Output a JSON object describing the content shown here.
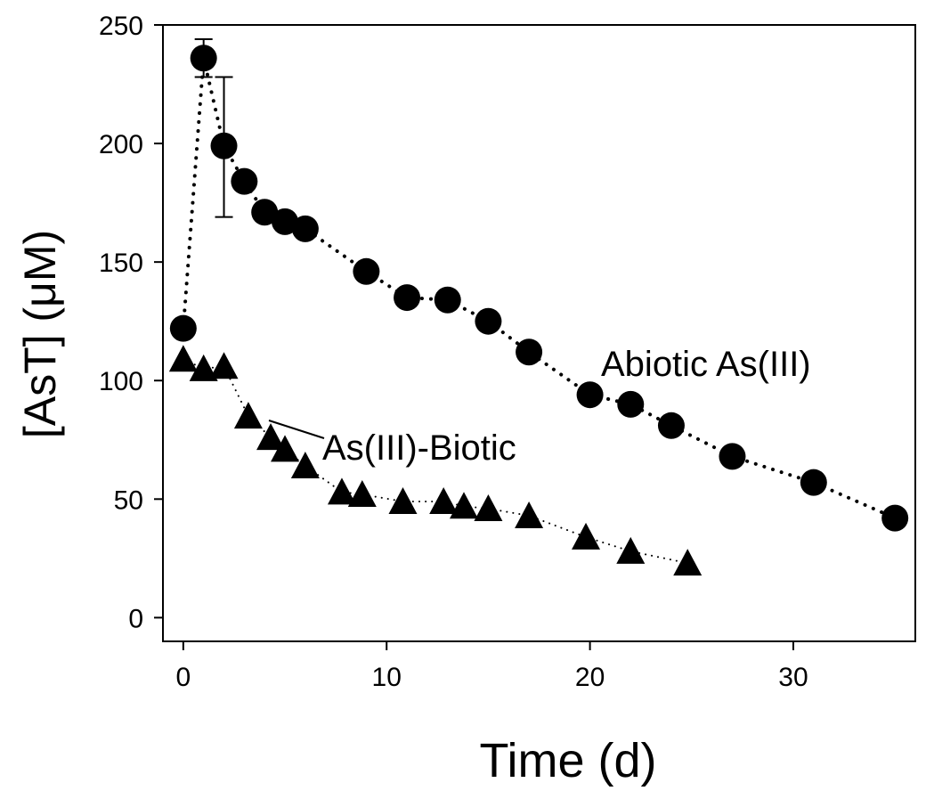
{
  "chart_data": {
    "type": "scatter",
    "title": "",
    "xlabel": "Time (d)",
    "ylabel": "[AsT] (μM)",
    "xlim": [
      -1,
      36
    ],
    "ylim": [
      -10,
      250
    ],
    "xticks": [
      0,
      10,
      20,
      30
    ],
    "yticks": [
      0,
      50,
      100,
      150,
      200,
      250
    ],
    "grid": false,
    "series": [
      {
        "name": "Abiotic As(III)",
        "marker": "circle",
        "line": "dotted",
        "x": [
          0,
          1,
          2,
          3,
          4,
          5,
          6,
          9,
          11,
          13,
          15,
          17,
          20,
          22,
          24,
          27,
          31,
          35
        ],
        "y": [
          122,
          236,
          199,
          184,
          171,
          167,
          164,
          146,
          135,
          134,
          125,
          112,
          94,
          90,
          81,
          68,
          57,
          42
        ],
        "error": [
          {
            "x": 1,
            "low": 228,
            "high": 244
          },
          {
            "x": 2,
            "low": 169,
            "high": 228
          }
        ]
      },
      {
        "name": "As(III)-Biotic",
        "marker": "triangle",
        "line": "dotted",
        "x": [
          0,
          1,
          2,
          3.2,
          4.3,
          5,
          6,
          7.8,
          8.8,
          10.8,
          12.8,
          13.8,
          15,
          17,
          19.8,
          22,
          24.8
        ],
        "y": [
          109,
          105,
          106,
          85,
          76,
          71,
          64,
          53,
          52,
          49,
          49,
          47,
          46,
          43,
          34,
          28,
          23
        ]
      }
    ],
    "annotations": [
      {
        "text": "Abiotic As(III)"
      },
      {
        "text": "As(III)-Biotic"
      }
    ]
  }
}
